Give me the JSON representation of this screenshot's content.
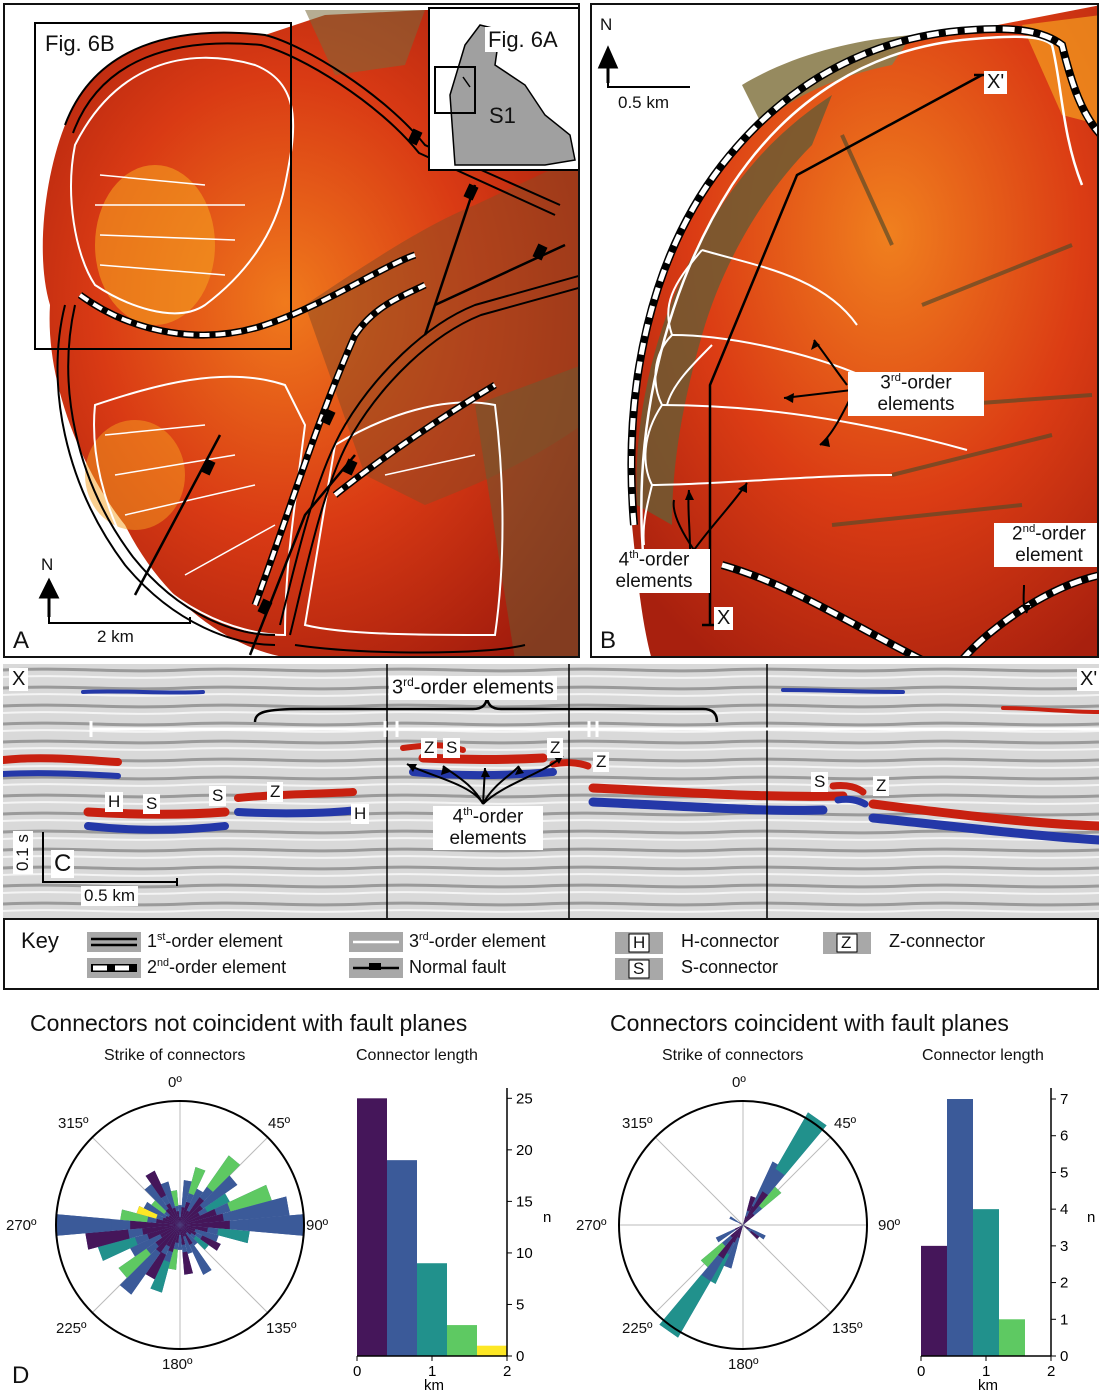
{
  "panels": {
    "a": {
      "letter": "A",
      "inset_labels": {
        "fig6b": "Fig. 6B",
        "fig6a": "Fig. 6A",
        "s1": "S1"
      },
      "north": "N",
      "scale": "2 km"
    },
    "b": {
      "letter": "B",
      "north": "N",
      "scale": "0.5 km",
      "x_start": "X",
      "x_end": "X'",
      "third_order_label": "3rd-order elements",
      "fourth_order_label": "4th-order elements",
      "second_order_label": "2nd-order element"
    },
    "c": {
      "letter": "C",
      "x_start": "X",
      "x_end": "X'",
      "third_order_label": "3rd-order elements",
      "fourth_order_label": "4th-order elements",
      "time_scale": "0.1 s",
      "length_scale": "0.5 km",
      "connector_letters": [
        "H",
        "S",
        "S",
        "Z",
        "H",
        "Z",
        "S",
        "Z",
        "Z",
        "S",
        "Z"
      ]
    }
  },
  "key": {
    "title": "Key",
    "items": [
      {
        "symbol": "double-line",
        "label": "1st-order element"
      },
      {
        "symbol": "dashed-double",
        "label": "2nd-order element"
      },
      {
        "symbol": "white-line",
        "label": "3rd-order element"
      },
      {
        "symbol": "normal-fault",
        "label": "Normal fault"
      },
      {
        "symbol": "H",
        "label": "H-connector"
      },
      {
        "symbol": "S",
        "label": "S-connector"
      },
      {
        "symbol": "Z",
        "label": "Z-connector"
      }
    ]
  },
  "panel_d": {
    "letter": "D",
    "groups": [
      {
        "title": "Connectors not coincident with fault planes",
        "rose_title": "Strike of connectors",
        "hist_title": "Connector length"
      },
      {
        "title": "Connectors coincident with fault planes",
        "rose_title": "Strike of connectors",
        "hist_title": "Connector length"
      }
    ],
    "rose_labels": [
      "0º",
      "45º",
      "90º",
      "135º",
      "180º",
      "225º",
      "270º",
      "315º"
    ]
  },
  "chart_data": [
    {
      "type": "bar",
      "title": "Connector length",
      "xlabel": "km",
      "ylabel": "n",
      "bin_edges": [
        0,
        0.4,
        0.8,
        1.2,
        1.6,
        2.0
      ],
      "values": [
        25,
        19,
        9,
        3,
        1
      ],
      "ylim": [
        0,
        26
      ],
      "yticks": [
        0,
        5,
        10,
        15,
        20,
        25
      ],
      "xticks": [
        0,
        1,
        2
      ],
      "colors": [
        "#45165a",
        "#3b5a99",
        "#21918c",
        "#5ec962",
        "#fde725"
      ]
    },
    {
      "type": "bar",
      "title": "Connector length",
      "xlabel": "km",
      "ylabel": "n",
      "bin_edges": [
        0,
        0.4,
        0.8,
        1.2,
        1.6
      ],
      "values": [
        3,
        7,
        4,
        1
      ],
      "ylim": [
        0,
        7.3
      ],
      "yticks": [
        0,
        1,
        2,
        3,
        4,
        5,
        6,
        7
      ],
      "xticks": [
        0,
        1,
        2
      ],
      "colors": [
        "#45165a",
        "#3b5a99",
        "#21918c",
        "#5ec962"
      ]
    }
  ],
  "colors": {
    "map_dark": "#b0200f",
    "map_mid": "#e2541b",
    "map_light": "#f5a623",
    "terrace": "#6e5a2e",
    "viridis": [
      "#45165a",
      "#3b5a99",
      "#21918c",
      "#5ec962",
      "#fde725"
    ]
  }
}
